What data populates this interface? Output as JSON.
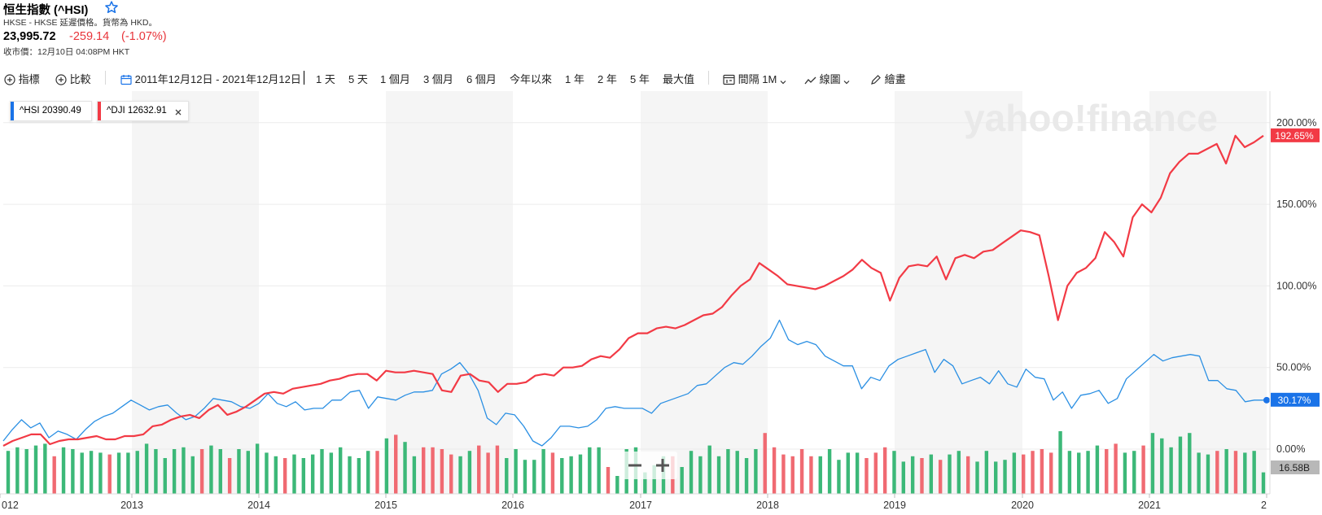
{
  "header": {
    "title": "恒生指數 (^HSI)",
    "subtitle": "HKSE - HKSE 延遲價格。貨幣為 HKD。",
    "price": "23,995.72",
    "change": "-259.14",
    "change_pct": "(-1.07%)",
    "close_time": "收市價：12月10日 04:08PM HKT"
  },
  "toolbar": {
    "indicators": "指標",
    "compare": "比較",
    "date_range": "2011年12月12日 - 2021年12月12日",
    "ranges": [
      "1 天",
      "5 天",
      "1 個月",
      "3 個月",
      "6 個月",
      "今年以來",
      "1 年",
      "2 年",
      "5 年",
      "最大值"
    ],
    "interval_label": "間隔",
    "interval_value": "1M",
    "chart_type": "線圖",
    "draw": "繪畫"
  },
  "legend": [
    {
      "label": "^HSI 20390.49",
      "color": "#1a73e8"
    },
    {
      "label": "^DJI 12632.91",
      "color": "#f23a45",
      "removable": true
    }
  ],
  "watermark": "yahoo!finance",
  "colors": {
    "hsi": "#2a8fe3",
    "dji": "#f23a45",
    "vol_up": "#3cb878",
    "vol_down": "#f06a72",
    "grid": "#ececec",
    "band": "#f5f5f5"
  },
  "chart_data": {
    "type": "line",
    "x_labels": [
      "012",
      "2013",
      "2014",
      "2015",
      "2016",
      "2017",
      "2018",
      "2019",
      "2020",
      "2021",
      "2"
    ],
    "y_ticks": [
      "200.00%",
      "150.00%",
      "100.00%",
      "50.00%",
      "0.00%"
    ],
    "ylim": [
      -25,
      200
    ],
    "last_labels": {
      "hsi": "30.17%",
      "dji": "192.65%",
      "volume": "16.58B"
    },
    "series": [
      {
        "name": "^HSI",
        "values": [
          5,
          12,
          18,
          13,
          16,
          7,
          11,
          9,
          6,
          12,
          17,
          20,
          22,
          26,
          30,
          27,
          24,
          26,
          27,
          22,
          18,
          20,
          25,
          31,
          30,
          29,
          26,
          25,
          28,
          34,
          28,
          26,
          29,
          24,
          25,
          25,
          30,
          30,
          35,
          36,
          25,
          32,
          31,
          30,
          33,
          35,
          35,
          36,
          46,
          49,
          53,
          46,
          36,
          19,
          15,
          22,
          21,
          14,
          5,
          2,
          7,
          14,
          14,
          13,
          14,
          18,
          25,
          26,
          25,
          25,
          25,
          22,
          28,
          30,
          32,
          34,
          39,
          40,
          45,
          50,
          53,
          52,
          57,
          63,
          68,
          79,
          67,
          64,
          66,
          64,
          57,
          54,
          51,
          51,
          37,
          44,
          42,
          51,
          55,
          57,
          59,
          61,
          47,
          55,
          51,
          40,
          42,
          44,
          40,
          48,
          40,
          38,
          49,
          44,
          43,
          30,
          35,
          25,
          33,
          34,
          36,
          28,
          31,
          43,
          48,
          53,
          58,
          54,
          56,
          57,
          58,
          57,
          42,
          42,
          37,
          36,
          29,
          30,
          30
        ]
      },
      {
        "name": "^DJI",
        "values": [
          2,
          5,
          7,
          9,
          9,
          3,
          5,
          6,
          6,
          7,
          8,
          6,
          6,
          8,
          8,
          9,
          14,
          15,
          18,
          20,
          21,
          19,
          24,
          27,
          21,
          23,
          26,
          30,
          34,
          35,
          34,
          37,
          38,
          39,
          40,
          42,
          43,
          45,
          46,
          46,
          42,
          48,
          47,
          47,
          48,
          47,
          46,
          36,
          35,
          45,
          46,
          42,
          41,
          35,
          40,
          40,
          41,
          45,
          46,
          45,
          50,
          50,
          51,
          55,
          57,
          56,
          61,
          68,
          71,
          71,
          74,
          75,
          74,
          76,
          79,
          82,
          83,
          87,
          94,
          100,
          104,
          114,
          110,
          106,
          101,
          100,
          99,
          98,
          100,
          103,
          106,
          110,
          116,
          111,
          108,
          91,
          105,
          112,
          113,
          112,
          118,
          104,
          117,
          119,
          117,
          121,
          122,
          126,
          130,
          134,
          133,
          131,
          106,
          79,
          100,
          108,
          111,
          117,
          133,
          127,
          118,
          142,
          150,
          145,
          154,
          169,
          176,
          181,
          181,
          184,
          187,
          175,
          192,
          185,
          188,
          192
        ]
      },
      {
        "name": "Volume",
        "values": [
          24,
          26,
          25,
          27,
          28,
          21,
          26,
          25,
          23,
          24,
          23,
          22,
          23,
          23,
          24,
          28,
          25,
          20,
          25,
          26,
          21,
          25,
          27,
          25,
          20,
          25,
          24,
          28,
          23,
          21,
          20,
          22,
          20,
          22,
          25,
          23,
          26,
          21,
          20,
          24,
          24,
          31,
          33,
          29,
          21,
          26,
          26,
          25,
          22,
          21,
          24,
          27,
          23,
          27,
          20,
          25,
          19,
          19,
          25,
          23,
          20,
          21,
          22,
          26,
          26,
          15,
          10,
          25,
          26,
          12,
          16,
          21,
          21,
          15,
          24,
          21,
          27,
          21,
          25,
          24,
          20,
          25,
          34,
          26,
          22,
          21,
          25,
          21,
          21,
          25,
          19,
          23,
          23,
          20,
          23,
          26,
          24,
          18,
          21,
          20,
          22,
          19,
          22,
          24,
          21,
          18,
          24,
          18,
          19,
          23,
          22,
          24,
          25,
          23,
          35,
          24,
          23,
          24,
          27,
          25,
          28,
          23,
          24,
          27,
          34,
          31,
          26,
          32,
          34,
          23,
          22,
          24,
          25,
          24,
          23,
          24,
          12
        ]
      }
    ]
  }
}
